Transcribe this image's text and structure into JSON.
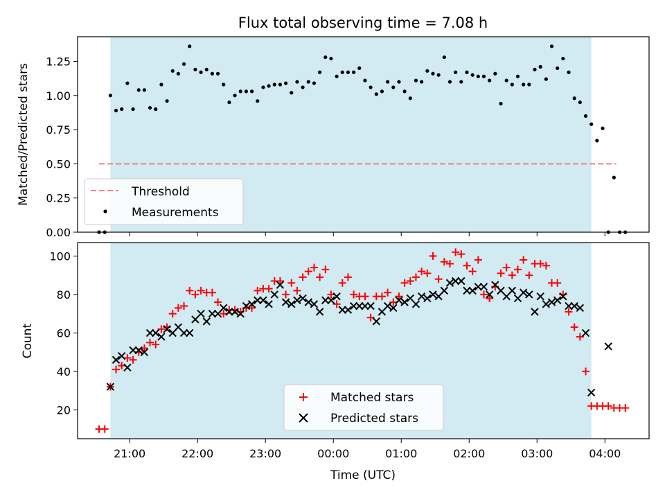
{
  "chart_data": [
    {
      "type": "scatter",
      "title": "Flux total observing time = 7.08 h",
      "ylabel": "Matched/Predicted stars",
      "ylim": [
        0,
        1.43
      ],
      "yticks": [
        "0.00",
        "0.25",
        "0.50",
        "0.75",
        "1.00",
        "1.25"
      ],
      "shaded_span": {
        "from": "20:43",
        "to": "03:48",
        "color": "#add8e6"
      },
      "threshold": {
        "name": "Threshold",
        "value": 0.5,
        "from": "20:33",
        "to": "04:10",
        "color": "#f08080"
      },
      "series": [
        {
          "name": "Measurements",
          "color": "#000000",
          "x": [
            "20:33",
            "20:38",
            "20:43",
            "20:48",
            "20:53",
            "20:58",
            "21:03",
            "21:08",
            "21:13",
            "21:18",
            "21:23",
            "21:28",
            "21:33",
            "21:38",
            "21:43",
            "21:48",
            "21:53",
            "21:58",
            "22:03",
            "22:08",
            "22:13",
            "22:18",
            "22:23",
            "22:28",
            "22:33",
            "22:38",
            "22:43",
            "22:48",
            "22:53",
            "22:58",
            "23:03",
            "23:08",
            "23:13",
            "23:18",
            "23:23",
            "23:28",
            "23:33",
            "23:38",
            "23:43",
            "23:48",
            "23:53",
            "23:58",
            "00:03",
            "00:08",
            "00:13",
            "00:18",
            "00:23",
            "00:28",
            "00:33",
            "00:38",
            "00:43",
            "00:48",
            "00:53",
            "00:58",
            "01:03",
            "01:08",
            "01:13",
            "01:18",
            "01:23",
            "01:28",
            "01:33",
            "01:38",
            "01:43",
            "01:48",
            "01:53",
            "01:58",
            "02:03",
            "02:08",
            "02:13",
            "02:18",
            "02:23",
            "02:28",
            "02:33",
            "02:38",
            "02:43",
            "02:48",
            "02:53",
            "02:58",
            "03:03",
            "03:08",
            "03:13",
            "03:18",
            "03:23",
            "03:28",
            "03:33",
            "03:38",
            "03:43",
            "03:48",
            "03:53",
            "03:58",
            "04:03",
            "04:08",
            "04:13",
            "04:18"
          ],
          "y": [
            0.0,
            0.0,
            1.0,
            0.89,
            0.9,
            1.09,
            0.9,
            1.04,
            1.04,
            0.91,
            0.9,
            1.08,
            0.96,
            1.18,
            1.16,
            1.23,
            1.36,
            1.19,
            1.17,
            1.19,
            1.16,
            1.16,
            1.08,
            0.95,
            1.0,
            1.03,
            1.03,
            1.03,
            0.96,
            1.06,
            1.07,
            1.08,
            1.08,
            1.09,
            1.02,
            1.1,
            1.06,
            1.1,
            1.09,
            1.17,
            1.28,
            1.27,
            1.14,
            1.17,
            1.17,
            1.17,
            1.2,
            1.11,
            1.06,
            1.01,
            1.03,
            1.1,
            1.06,
            1.1,
            1.03,
            0.98,
            1.11,
            1.1,
            1.18,
            1.16,
            1.15,
            1.28,
            1.1,
            1.17,
            1.1,
            1.17,
            1.15,
            1.14,
            1.14,
            1.11,
            1.16,
            0.94,
            1.11,
            1.08,
            1.14,
            1.08,
            1.08,
            1.19,
            1.21,
            1.12,
            1.36,
            1.2,
            1.27,
            1.17,
            0.98,
            0.95,
            0.85,
            0.79,
            0.67,
            0.76,
            0.0,
            0.4,
            0.0,
            0.0
          ]
        }
      ]
    },
    {
      "type": "scatter",
      "xlabel": "Time (UTC)",
      "ylabel": "Count",
      "ylim": [
        5,
        107
      ],
      "yticks": [
        "20",
        "40",
        "60",
        "80",
        "100"
      ],
      "xticks": [
        "21:00",
        "22:00",
        "23:00",
        "00:00",
        "01:00",
        "02:00",
        "03:00",
        "04:00"
      ],
      "shaded_span": {
        "from": "20:43",
        "to": "03:48",
        "color": "#add8e6"
      },
      "series": [
        {
          "name": "Matched stars",
          "marker": "plus",
          "color": "#ff0000",
          "x": [
            "20:33",
            "20:38",
            "20:43",
            "20:48",
            "20:53",
            "20:58",
            "21:03",
            "21:08",
            "21:13",
            "21:18",
            "21:23",
            "21:28",
            "21:33",
            "21:38",
            "21:43",
            "21:48",
            "21:53",
            "21:58",
            "22:03",
            "22:08",
            "22:13",
            "22:18",
            "22:23",
            "22:28",
            "22:33",
            "22:38",
            "22:43",
            "22:48",
            "22:53",
            "22:58",
            "23:03",
            "23:08",
            "23:13",
            "23:18",
            "23:23",
            "23:28",
            "23:33",
            "23:38",
            "23:43",
            "23:48",
            "23:53",
            "23:58",
            "00:03",
            "00:08",
            "00:13",
            "00:18",
            "00:23",
            "00:28",
            "00:33",
            "00:38",
            "00:43",
            "00:48",
            "00:53",
            "00:58",
            "01:03",
            "01:08",
            "01:13",
            "01:18",
            "01:23",
            "01:28",
            "01:33",
            "01:38",
            "01:43",
            "01:48",
            "01:53",
            "01:58",
            "02:03",
            "02:08",
            "02:13",
            "02:18",
            "02:23",
            "02:28",
            "02:33",
            "02:38",
            "02:43",
            "02:48",
            "02:53",
            "02:58",
            "03:03",
            "03:08",
            "03:13",
            "03:18",
            "03:23",
            "03:28",
            "03:33",
            "03:38",
            "03:43",
            "03:48",
            "03:53",
            "03:58",
            "04:03",
            "04:08",
            "04:13",
            "04:18"
          ],
          "y": [
            10,
            10,
            32,
            41,
            43,
            47,
            46,
            50,
            52,
            55,
            54,
            62,
            63,
            70,
            73,
            74,
            82,
            80,
            82,
            81,
            81,
            76,
            70,
            72,
            72,
            71,
            73,
            73,
            82,
            83,
            83,
            87,
            87,
            80,
            86,
            82,
            89,
            92,
            94,
            89,
            93,
            80,
            75,
            86,
            89,
            80,
            79,
            79,
            68,
            79,
            79,
            81,
            76,
            79,
            86,
            87,
            89,
            92,
            91,
            100,
            88,
            97,
            96,
            102,
            101,
            95,
            92,
            98,
            80,
            78,
            84,
            91,
            94,
            90,
            93,
            98,
            90,
            96,
            96,
            95,
            86,
            86,
            80,
            71,
            63,
            58,
            40,
            22,
            22,
            22,
            22,
            21,
            21,
            21
          ]
        },
        {
          "name": "Predicted stars",
          "marker": "x",
          "color": "#000000",
          "x": [
            "20:43",
            "20:48",
            "20:53",
            "20:58",
            "21:03",
            "21:08",
            "21:13",
            "21:18",
            "21:23",
            "21:28",
            "21:33",
            "21:38",
            "21:43",
            "21:48",
            "21:53",
            "21:58",
            "22:03",
            "22:08",
            "22:13",
            "22:18",
            "22:23",
            "22:28",
            "22:33",
            "22:38",
            "22:43",
            "22:48",
            "22:53",
            "22:58",
            "23:03",
            "23:08",
            "23:13",
            "23:18",
            "23:23",
            "23:28",
            "23:33",
            "23:38",
            "23:43",
            "23:48",
            "23:53",
            "23:58",
            "00:03",
            "00:08",
            "00:13",
            "00:18",
            "00:23",
            "00:28",
            "00:33",
            "00:38",
            "00:43",
            "00:48",
            "00:53",
            "00:58",
            "01:03",
            "01:08",
            "01:13",
            "01:18",
            "01:23",
            "01:28",
            "01:33",
            "01:38",
            "01:43",
            "01:48",
            "01:53",
            "01:58",
            "02:03",
            "02:08",
            "02:13",
            "02:18",
            "02:23",
            "02:28",
            "02:33",
            "02:38",
            "02:43",
            "02:48",
            "02:53",
            "02:58",
            "03:03",
            "03:08",
            "03:13",
            "03:18",
            "03:23",
            "03:28",
            "03:33",
            "03:38",
            "03:43",
            "03:48",
            "04:03"
          ],
          "y": [
            32,
            46,
            48,
            42,
            51,
            51,
            50,
            60,
            60,
            58,
            62,
            60,
            63,
            60,
            60,
            67,
            70,
            66,
            70,
            70,
            73,
            71,
            71,
            70,
            74,
            75,
            77,
            77,
            75,
            80,
            85,
            76,
            75,
            77,
            78,
            76,
            75,
            71,
            77,
            77,
            79,
            72,
            72,
            74,
            74,
            74,
            74,
            66,
            71,
            74,
            73,
            77,
            76,
            78,
            75,
            79,
            78,
            80,
            79,
            82,
            86,
            87,
            87,
            82,
            82,
            84,
            84,
            80,
            85,
            82,
            79,
            82,
            78,
            81,
            80,
            71,
            79,
            75,
            76,
            77,
            79,
            74,
            74,
            73,
            60,
            29,
            53
          ]
        }
      ]
    }
  ]
}
